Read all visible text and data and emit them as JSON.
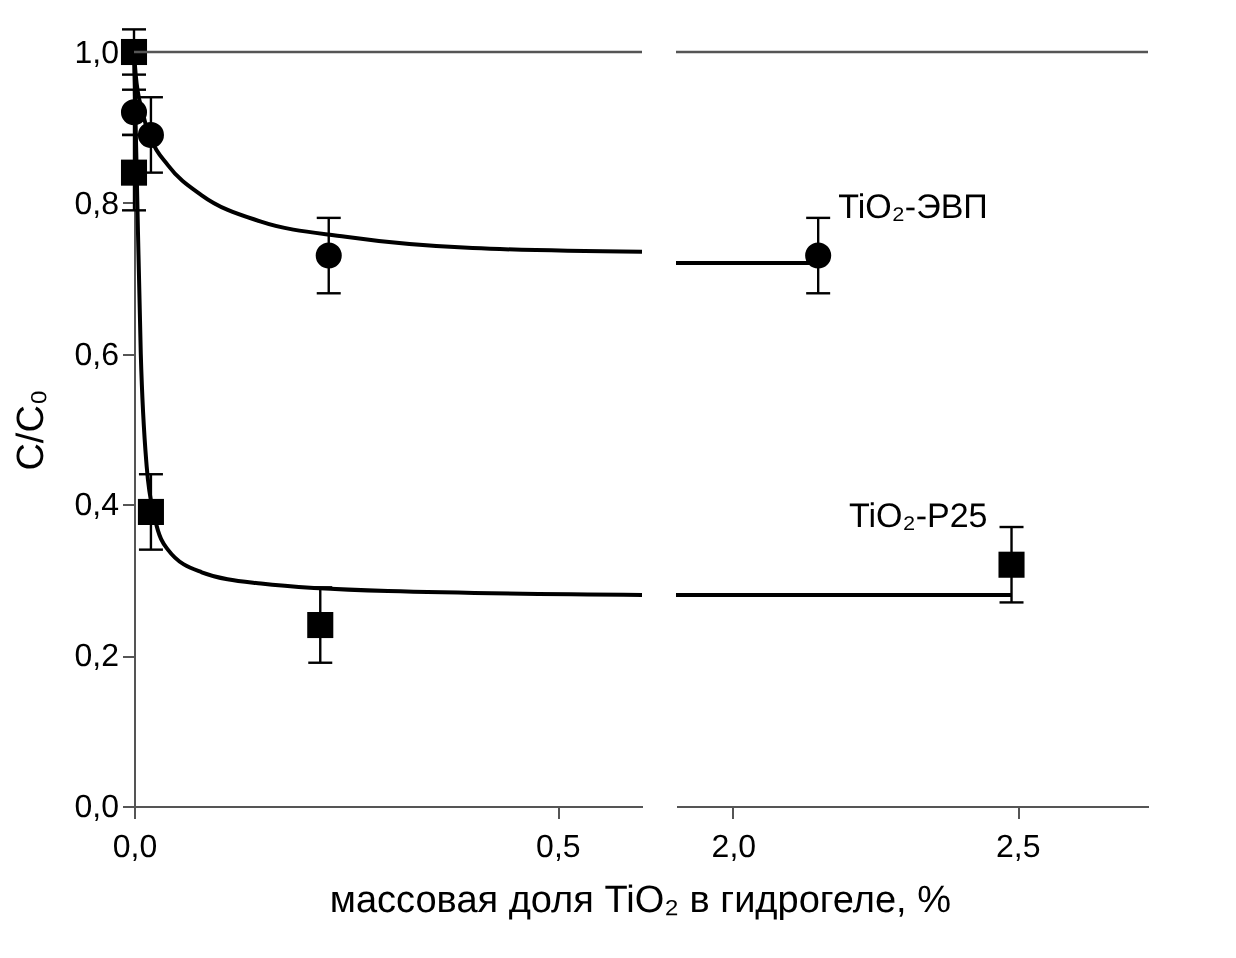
{
  "chart_data": [
    {
      "type": "scatter",
      "xlabel": "массовая доля TiO₂ в гидрогеле, %",
      "ylabel": "C/C₀",
      "xlim": [
        0,
        0.6
      ],
      "xticks": [
        {
          "value": 0,
          "label": "0,0"
        },
        {
          "value": 0.5,
          "label": "0,5"
        }
      ],
      "ylim": [
        0,
        1
      ],
      "yticks": [
        {
          "value": 0,
          "label": "0,0"
        },
        {
          "value": 0.2,
          "label": "0,2"
        },
        {
          "value": 0.4,
          "label": "0,4"
        },
        {
          "value": 0.6,
          "label": "0,6"
        },
        {
          "value": 0.8,
          "label": "0,8"
        },
        {
          "value": 1,
          "label": "1,0"
        }
      ],
      "grid": false,
      "ref_lines": [
        {
          "axis": "y",
          "value": 1,
          "color": "#555555"
        }
      ],
      "series": [
        {
          "marker": "circle",
          "color": "#000000",
          "x": [
            0,
            0.02,
            0.23
          ],
          "values": [
            0.92,
            0.89,
            0.73
          ],
          "errors": [
            0.03,
            0.05,
            0.05
          ]
        },
        {
          "marker": "square",
          "color": "#000000",
          "x": [
            0,
            0,
            0.02,
            0.22
          ],
          "values": [
            1.0,
            0.84,
            0.39,
            0.24
          ],
          "errors": [
            0.03,
            0.05,
            0.05,
            0.05
          ]
        },
        {
          "type": "line",
          "color": "#000000",
          "x": [
            0,
            0.002,
            0.01,
            0.02,
            0.04,
            0.08,
            0.15,
            0.25,
            0.4,
            0.6
          ],
          "values": [
            1.0,
            0.97,
            0.92,
            0.885,
            0.85,
            0.81,
            0.775,
            0.755,
            0.74,
            0.735
          ]
        },
        {
          "type": "line",
          "color": "#000000",
          "x": [
            0,
            0.003,
            0.008,
            0.015,
            0.025,
            0.04,
            0.08,
            0.15,
            0.3,
            0.6
          ],
          "values": [
            1.0,
            0.85,
            0.6,
            0.45,
            0.38,
            0.34,
            0.31,
            0.295,
            0.285,
            0.28
          ]
        }
      ]
    },
    {
      "type": "scatter",
      "tick_labels": "x",
      "xlim": [
        1.9,
        2.73
      ],
      "xticks": [
        {
          "value": 2,
          "label": "2,0"
        },
        {
          "value": 2.5,
          "label": "2,5"
        }
      ],
      "ylim": [
        0,
        1
      ],
      "grid": false,
      "ref_lines": [
        {
          "axis": "y",
          "value": 1,
          "color": "#555555"
        }
      ],
      "series": [
        {
          "name": "TiO₂-ЭВП",
          "marker": "circle",
          "color": "#000000",
          "x": [
            2.15
          ],
          "values": [
            0.73
          ],
          "errors": [
            0.05
          ]
        },
        {
          "name": "TiO₂-P25",
          "marker": "square",
          "color": "#000000",
          "x": [
            2.49
          ],
          "values": [
            0.32
          ],
          "errors": [
            0.05
          ]
        },
        {
          "type": "line",
          "color": "#000000",
          "x": [
            1.9,
            2.15
          ],
          "values": [
            0.72,
            0.72
          ]
        },
        {
          "type": "line",
          "color": "#000000",
          "x": [
            1.9,
            2.49
          ],
          "values": [
            0.28,
            0.28
          ]
        }
      ]
    }
  ]
}
